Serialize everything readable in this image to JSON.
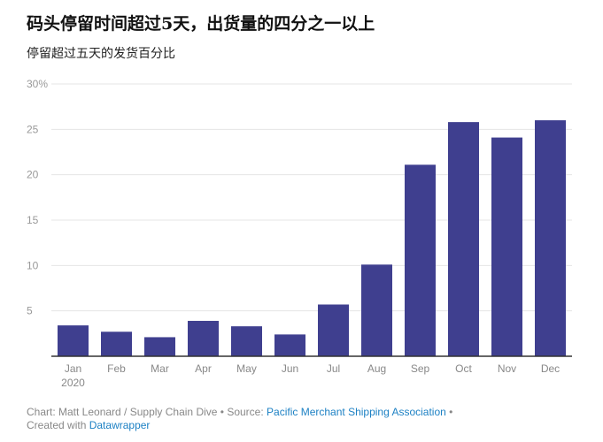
{
  "title": "码头停留时间超过5天，出货量的四分之一以上",
  "subtitle": "停留超过五天的发货百分比",
  "chart_data": {
    "type": "bar",
    "categories": [
      "Jan",
      "Feb",
      "Mar",
      "Apr",
      "May",
      "Jun",
      "Jul",
      "Aug",
      "Sep",
      "Oct",
      "Nov",
      "Dec"
    ],
    "first_category_sublabel": "2020",
    "values": [
      3.4,
      2.7,
      2.1,
      3.9,
      3.3,
      2.4,
      5.7,
      10.1,
      21.1,
      25.8,
      24.1,
      26.0
    ],
    "ylim": [
      0,
      30
    ],
    "yticks": [
      "0",
      "5",
      "10",
      "15",
      "20",
      "25",
      "30%"
    ],
    "grid": true,
    "bar_color": "#3f3f8f"
  },
  "footer": {
    "chart_credit": "Chart: Matt Leonard / Supply Chain Dive",
    "source_label": "Source:",
    "source_name": "Pacific Merchant Shipping Association",
    "created_with": "Created with",
    "tool": "Datawrapper"
  }
}
